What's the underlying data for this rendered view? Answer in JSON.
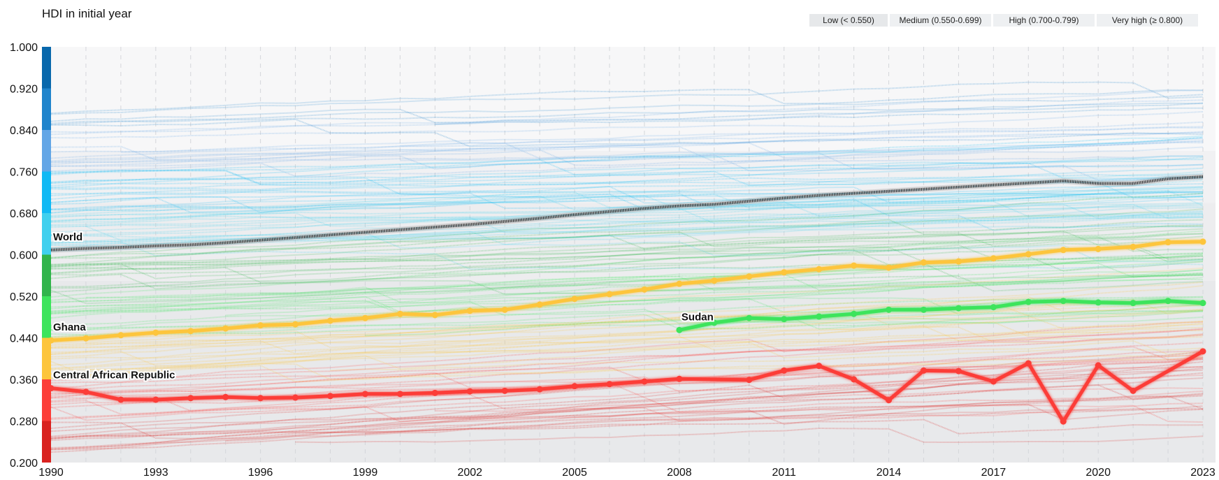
{
  "title": "HDI in initial year",
  "legend": {
    "items": [
      {
        "label": "Low (< 0.550)",
        "key": "low"
      },
      {
        "label": "Medium (0.550-0.699)",
        "key": "medium"
      },
      {
        "label": "High (0.700-0.799)",
        "key": "high"
      },
      {
        "label": "Very high (≥ 0.800)",
        "key": "very_high"
      }
    ]
  },
  "chart_data": {
    "type": "line",
    "title": "HDI in initial year",
    "xlabel": "",
    "ylabel": "",
    "xlim": [
      1990,
      2023
    ],
    "ylim": [
      0.2,
      1.0
    ],
    "x_ticks": [
      "1990",
      "1993",
      "1996",
      "1999",
      "2002",
      "2005",
      "2008",
      "2011",
      "2014",
      "2017",
      "2020",
      "2023"
    ],
    "y_ticks": [
      "1.000",
      "0.920",
      "0.840",
      "0.760",
      "0.680",
      "0.600",
      "0.520",
      "0.440",
      "0.360",
      "0.280",
      "0.200"
    ],
    "grid": "vertical dashed, one per year",
    "legend_position": "top-right",
    "color_scale": [
      {
        "from": 0.92,
        "to": 1.0,
        "color": "#0868ac"
      },
      {
        "from": 0.84,
        "to": 0.92,
        "color": "#1f84cc"
      },
      {
        "from": 0.76,
        "to": 0.84,
        "color": "#63a6e6"
      },
      {
        "from": 0.68,
        "to": 0.76,
        "color": "#11b9f4"
      },
      {
        "from": 0.6,
        "to": 0.68,
        "color": "#40d0ee"
      },
      {
        "from": 0.52,
        "to": 0.6,
        "color": "#31b44b"
      },
      {
        "from": 0.44,
        "to": 0.52,
        "color": "#3de45c"
      },
      {
        "from": 0.36,
        "to": 0.44,
        "color": "#fdc53c"
      },
      {
        "from": 0.28,
        "to": 0.36,
        "color": "#fc3d38"
      },
      {
        "from": 0.2,
        "to": 0.28,
        "color": "#d9221f"
      }
    ],
    "background_bands": [
      {
        "from": 0.8,
        "to": 1.0,
        "color": "#f7f7f8"
      },
      {
        "from": 0.7,
        "to": 0.8,
        "color": "#f1f1f3"
      },
      {
        "from": 0.55,
        "to": 0.7,
        "color": "#ededef"
      },
      {
        "from": 0.2,
        "to": 0.55,
        "color": "#e8e9eb"
      }
    ],
    "highlighted_series": [
      {
        "name": "World",
        "color": "#2b2b2b",
        "style": "dotted-thick",
        "x": [
          1990,
          1991,
          1992,
          1993,
          1994,
          1995,
          1996,
          1997,
          1998,
          1999,
          2000,
          2001,
          2002,
          2003,
          2004,
          2005,
          2006,
          2007,
          2008,
          2009,
          2010,
          2011,
          2012,
          2013,
          2014,
          2015,
          2016,
          2017,
          2018,
          2019,
          2020,
          2021,
          2022,
          2023
        ],
        "values": [
          0.609,
          0.612,
          0.614,
          0.617,
          0.619,
          0.623,
          0.628,
          0.633,
          0.638,
          0.643,
          0.648,
          0.653,
          0.658,
          0.664,
          0.67,
          0.677,
          0.683,
          0.689,
          0.694,
          0.697,
          0.703,
          0.709,
          0.714,
          0.718,
          0.722,
          0.726,
          0.73,
          0.734,
          0.738,
          0.742,
          0.737,
          0.737,
          0.746,
          0.75
        ]
      },
      {
        "name": "Ghana",
        "color": "#fdc53c",
        "style": "solid-markers",
        "x": [
          1990,
          1991,
          1992,
          1993,
          1994,
          1995,
          1996,
          1997,
          1998,
          1999,
          2000,
          2001,
          2002,
          2003,
          2004,
          2005,
          2006,
          2007,
          2008,
          2009,
          2010,
          2011,
          2012,
          2013,
          2014,
          2015,
          2016,
          2017,
          2018,
          2019,
          2020,
          2021,
          2022,
          2023
        ],
        "values": [
          0.435,
          0.439,
          0.445,
          0.45,
          0.453,
          0.458,
          0.464,
          0.466,
          0.473,
          0.478,
          0.486,
          0.484,
          0.492,
          0.494,
          0.504,
          0.515,
          0.524,
          0.533,
          0.544,
          0.55,
          0.558,
          0.566,
          0.572,
          0.579,
          0.575,
          0.585,
          0.587,
          0.593,
          0.601,
          0.609,
          0.611,
          0.615,
          0.624,
          0.625
        ]
      },
      {
        "name": "Sudan",
        "color": "#3de45c",
        "style": "solid-markers",
        "x": [
          2008,
          2009,
          2010,
          2011,
          2012,
          2013,
          2014,
          2015,
          2016,
          2017,
          2018,
          2019,
          2020,
          2021,
          2022,
          2023
        ],
        "values": [
          0.455,
          0.469,
          0.478,
          0.476,
          0.481,
          0.486,
          0.494,
          0.494,
          0.497,
          0.499,
          0.509,
          0.511,
          0.508,
          0.507,
          0.511,
          0.507
        ]
      },
      {
        "name": "Central African Republic",
        "color": "#fc3d38",
        "style": "solid-markers",
        "x": [
          1990,
          1991,
          1992,
          1993,
          1994,
          1995,
          1996,
          1997,
          1998,
          1999,
          2000,
          2001,
          2002,
          2003,
          2004,
          2005,
          2006,
          2007,
          2008,
          2010,
          2011,
          2012,
          2013,
          2014,
          2015,
          2016,
          2017,
          2018,
          2019,
          2020,
          2021,
          2023
        ],
        "values": [
          0.343,
          0.336,
          0.321,
          0.321,
          0.324,
          0.326,
          0.324,
          0.325,
          0.328,
          0.332,
          0.332,
          0.334,
          0.337,
          0.338,
          0.341,
          0.347,
          0.351,
          0.356,
          0.361,
          0.359,
          0.377,
          0.386,
          0.36,
          0.32,
          0.377,
          0.376,
          0.356,
          0.391,
          0.279,
          0.387,
          0.338,
          0.414
        ]
      }
    ],
    "background_series_note": "~190 faint dotted country lines coloured by initial-year HDI band"
  }
}
